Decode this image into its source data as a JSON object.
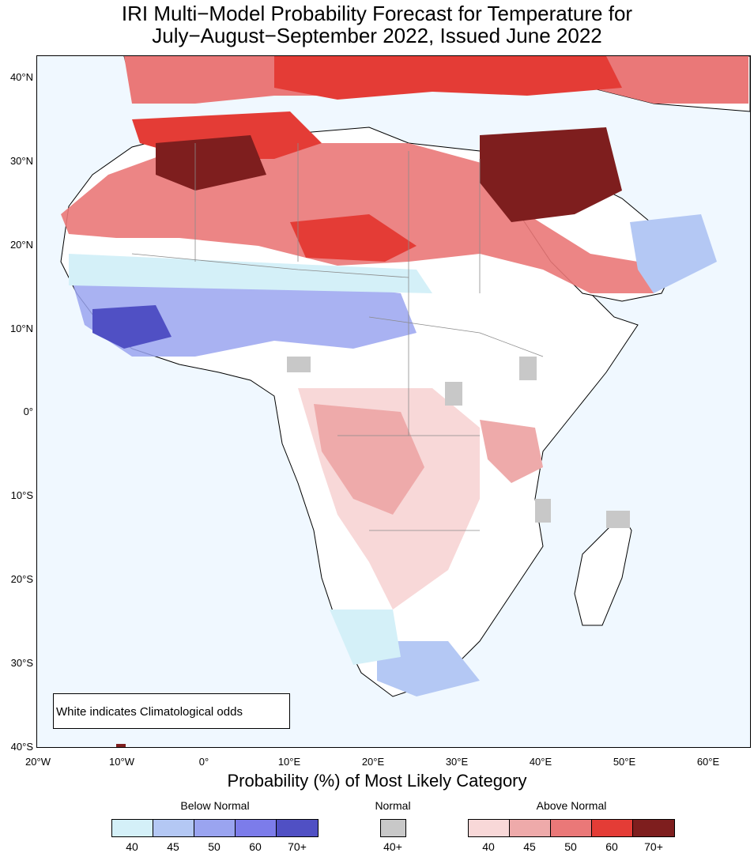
{
  "title": {
    "line1": "IRI Multi−Model Probability Forecast for Temperature for",
    "line2": "July−August−September 2022, Issued June 2022"
  },
  "y_ticks": [
    "40°N",
    "30°N",
    "20°N",
    "10°N",
    "0°",
    "10°S",
    "20°S",
    "30°S",
    "40°S"
  ],
  "x_ticks": [
    "20°W",
    "10°W",
    "0°",
    "10°E",
    "20°E",
    "30°E",
    "40°E",
    "50°E",
    "60°E"
  ],
  "map_note": "White indicates Climatological odds",
  "legend": {
    "title": "Probability (%) of Most Likely Category",
    "below": {
      "label": "Below Normal",
      "colors": [
        "#d4f0f8",
        "#b4c8f4",
        "#9aa4f0",
        "#7c7cea",
        "#5050c4"
      ],
      "values": [
        "40",
        "45",
        "50",
        "60",
        "70+"
      ]
    },
    "normal": {
      "label": "Normal",
      "colors": [
        "#c8c8c8"
      ],
      "values": [
        "40+"
      ]
    },
    "above": {
      "label": "Above Normal",
      "colors": [
        "#f8d8d8",
        "#eeaaaa",
        "#ea7878",
        "#e43c36",
        "#7e1e1e"
      ],
      "values": [
        "40",
        "45",
        "50",
        "60",
        "70+"
      ]
    }
  }
}
